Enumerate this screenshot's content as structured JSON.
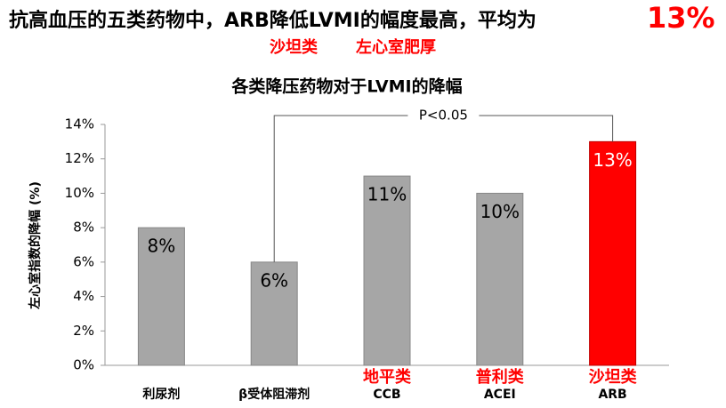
{
  "header": {
    "title": "抗高血压的五类药物中，ARB降低LVMI的幅度最高，平均为",
    "highlight": "13%",
    "tags": [
      "沙坦类",
      "左心室肥厚"
    ]
  },
  "chart_data": {
    "type": "bar",
    "title": "各类降压药物对于LVMI的降幅",
    "y_label": "左心室指数的降幅 (%)",
    "categories": [
      "利尿剂",
      "β受体阻滞剂",
      "CCB",
      "ACEI",
      "ARB"
    ],
    "category_notes": [
      null,
      null,
      "地平类",
      "普利类",
      "沙坦类"
    ],
    "values": [
      8,
      6,
      11,
      10,
      13
    ],
    "value_labels": [
      "8%",
      "6%",
      "11%",
      "10%",
      "13%"
    ],
    "colors": [
      "#a6a6a6",
      "#a6a6a6",
      "#a6a6a6",
      "#a6a6a6",
      "#ff0000"
    ],
    "annotation": "P<0.05",
    "ylim": [
      0,
      14
    ],
    "yticks": [
      {
        "value": 0,
        "label": "0%"
      },
      {
        "value": 2,
        "label": "2%"
      },
      {
        "value": 4,
        "label": "4%"
      },
      {
        "value": 6,
        "label": "6%"
      },
      {
        "value": 8,
        "label": "8%"
      },
      {
        "value": 10,
        "label": "10%"
      },
      {
        "value": 12,
        "label": "12%"
      },
      {
        "value": 14,
        "label": "14%"
      }
    ],
    "grid": false
  }
}
